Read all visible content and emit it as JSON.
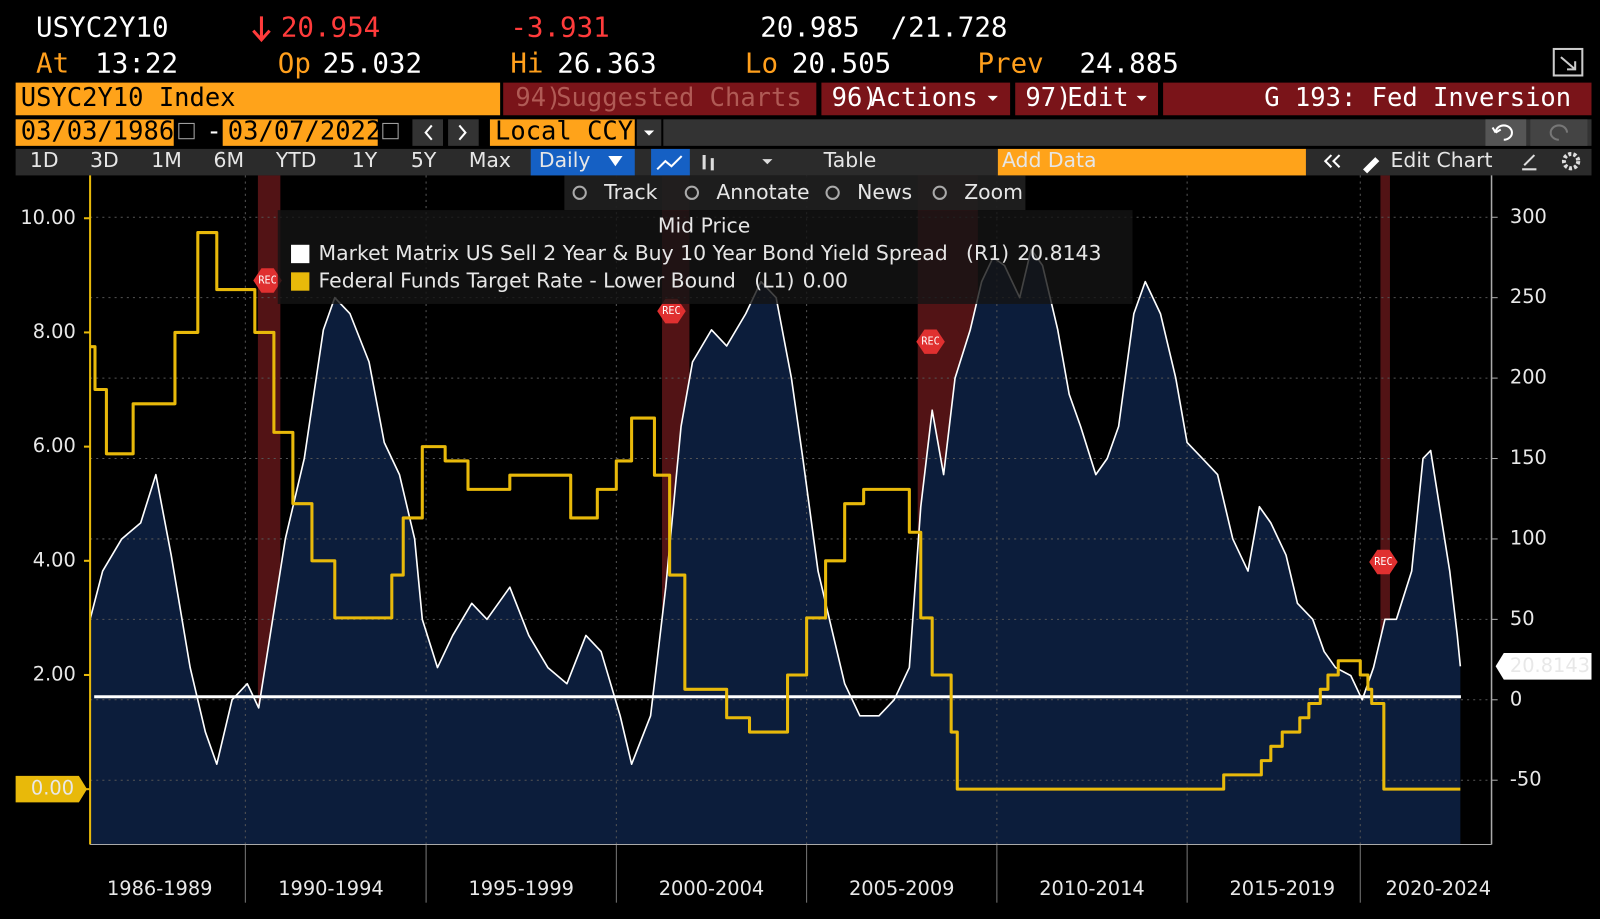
{
  "header": {
    "ticker": "USYC2Y10",
    "last": "20.954",
    "change": "-3.931",
    "bid": "20.985",
    "slash": "/",
    "ask": "21.728",
    "at_label": "At",
    "time": "13:22",
    "open_label": "Op",
    "open": "25.032",
    "high_label": "Hi",
    "high": "26.363",
    "low_label": "Lo",
    "low": "20.505",
    "prev_label": "Prev",
    "prev": "24.885"
  },
  "menu": {
    "security": "USYC2Y10 Index",
    "suggested_num": "94)",
    "suggested": "Suggested Charts",
    "actions_num": "96)",
    "actions": "Actions",
    "edit_num": "97)",
    "edit": "Edit",
    "page_title": "G 193: Fed Inversion"
  },
  "range": {
    "start": "03/03/1986",
    "dash": "-",
    "end": "03/07/2022",
    "currency": "Local CCY"
  },
  "toolbar": {
    "periods": [
      "1D",
      "3D",
      "1M",
      "6M",
      "YTD",
      "1Y",
      "5Y",
      "Max"
    ],
    "frequency": "Daily",
    "table": "Table",
    "add_data": "Add Data",
    "edit_chart": "Edit Chart"
  },
  "chart_tools": [
    "Track",
    "Annotate",
    "News",
    "Zoom"
  ],
  "chart_data": {
    "type": "line",
    "title": "Mid Price",
    "xlim": [
      1986.17,
      2023
    ],
    "xticks": [
      {
        "value": 1988,
        "label": "1986-1989"
      },
      {
        "value": 1992.5,
        "label": "1990-1994"
      },
      {
        "value": 1997.5,
        "label": "1995-1999"
      },
      {
        "value": 2002.5,
        "label": "2000-2004"
      },
      {
        "value": 2007.5,
        "label": "2005-2009"
      },
      {
        "value": 2012.5,
        "label": "2010-2014"
      },
      {
        "value": 2017.5,
        "label": "2015-2019"
      },
      {
        "value": 2021.6,
        "label": "2020-2024"
      }
    ],
    "ylim": [
      -0.97,
      10.75
    ],
    "yticks": [
      {
        "value": 0,
        "label": "0.00"
      },
      {
        "value": 2,
        "label": "2.00"
      },
      {
        "value": 4,
        "label": "4.00"
      },
      {
        "value": 6,
        "label": "6.00"
      },
      {
        "value": 8,
        "label": "8.00"
      },
      {
        "value": 10,
        "label": "10.00"
      }
    ],
    "y2lim": [
      -90,
      326
    ],
    "y2ticks": [
      -50,
      0,
      50,
      100,
      150,
      200,
      250,
      300
    ],
    "grid": true,
    "recession_label": "REC",
    "recessions": [
      [
        1990.58,
        1991.17
      ],
      [
        2001.2,
        2001.92
      ],
      [
        2007.92,
        2009.5
      ],
      [
        2020.08,
        2020.33
      ]
    ],
    "series": [
      {
        "name": "Market Matrix US Sell 2 Year & Buy 10 Year Bond Yield Spread",
        "axis": "y2",
        "axis_tag": "(R1)",
        "legend_value": "20.8143",
        "color": "#ffffff",
        "fill": "#0c1d3b",
        "x": [
          1986.17,
          1986.5,
          1987.0,
          1987.5,
          1987.9,
          1988.3,
          1988.8,
          1989.2,
          1989.5,
          1989.9,
          1990.3,
          1990.6,
          1990.9,
          1991.3,
          1991.8,
          1992.3,
          1992.6,
          1993.0,
          1993.5,
          1993.9,
          1994.3,
          1994.7,
          1994.9,
          1995.3,
          1995.7,
          1996.2,
          1996.6,
          1997.2,
          1997.7,
          1998.2,
          1998.7,
          1999.2,
          1999.6,
          2000.1,
          2000.4,
          2000.9,
          2001.3,
          2001.7,
          2002.0,
          2002.5,
          2002.9,
          2003.4,
          2003.8,
          2004.2,
          2004.6,
          2004.9,
          2005.3,
          2005.7,
          2006.0,
          2006.4,
          2006.9,
          2007.3,
          2007.7,
          2008.0,
          2008.3,
          2008.6,
          2008.9,
          2009.3,
          2009.6,
          2009.9,
          2010.2,
          2010.6,
          2010.9,
          2011.2,
          2011.6,
          2011.9,
          2012.2,
          2012.6,
          2012.9,
          2013.2,
          2013.6,
          2013.9,
          2014.3,
          2014.7,
          2015.0,
          2015.4,
          2015.8,
          2016.2,
          2016.6,
          2016.9,
          2017.2,
          2017.6,
          2017.9,
          2018.3,
          2018.6,
          2018.9,
          2019.3,
          2019.6,
          2019.9,
          2020.2,
          2020.5,
          2020.9,
          2021.2,
          2021.4,
          2021.7,
          2021.9,
          2022.1,
          2022.18
        ],
        "values": [
          50,
          80,
          100,
          110,
          140,
          90,
          20,
          -20,
          -40,
          0,
          10,
          -5,
          40,
          100,
          150,
          230,
          250,
          240,
          210,
          160,
          140,
          100,
          50,
          20,
          40,
          60,
          50,
          70,
          40,
          20,
          10,
          40,
          30,
          -10,
          -40,
          -10,
          70,
          170,
          210,
          230,
          220,
          240,
          260,
          250,
          200,
          150,
          80,
          40,
          10,
          -10,
          -10,
          0,
          20,
          120,
          180,
          140,
          200,
          230,
          260,
          275,
          270,
          250,
          280,
          270,
          230,
          190,
          170,
          140,
          150,
          170,
          240,
          260,
          240,
          200,
          160,
          150,
          140,
          100,
          80,
          120,
          110,
          90,
          60,
          50,
          30,
          20,
          15,
          0,
          20,
          50,
          50,
          80,
          150,
          155,
          110,
          80,
          40,
          20.8143
        ]
      },
      {
        "name": "Federal Funds Target Rate - Lower Bound",
        "axis": "y",
        "axis_tag": "(L1)",
        "legend_value": "0.00",
        "color": "#e8b90a",
        "x": [
          1986.17,
          1986.3,
          1986.3,
          1986.6,
          1986.6,
          1987.3,
          1987.3,
          1988.4,
          1988.4,
          1989.0,
          1989.0,
          1989.5,
          1989.5,
          1990.5,
          1990.5,
          1991.0,
          1991.0,
          1991.5,
          1991.5,
          1992.0,
          1992.0,
          1992.6,
          1992.6,
          1994.1,
          1994.1,
          1994.4,
          1994.4,
          1994.9,
          1994.9,
          1995.5,
          1995.5,
          1996.1,
          1996.1,
          1997.2,
          1997.2,
          1998.8,
          1998.8,
          1999.5,
          1999.5,
          2000.0,
          2000.0,
          2000.4,
          2000.4,
          2001.0,
          2001.0,
          2001.4,
          2001.4,
          2001.8,
          2001.8,
          2002.9,
          2002.9,
          2003.5,
          2003.5,
          2004.5,
          2004.5,
          2005.0,
          2005.0,
          2005.5,
          2005.5,
          2006.0,
          2006.0,
          2006.5,
          2006.5,
          2007.7,
          2007.7,
          2008.0,
          2008.0,
          2008.3,
          2008.3,
          2008.8,
          2008.8,
          2008.96,
          2008.96,
          2015.96,
          2015.96,
          2016.95,
          2016.95,
          2017.2,
          2017.2,
          2017.5,
          2017.5,
          2017.96,
          2017.96,
          2018.2,
          2018.2,
          2018.5,
          2018.5,
          2018.7,
          2018.7,
          2018.97,
          2018.97,
          2019.55,
          2019.55,
          2019.75,
          2019.75,
          2019.85,
          2019.85,
          2020.17,
          2020.17,
          2022.18
        ],
        "values": [
          7.75,
          7.75,
          7.0,
          7.0,
          5.875,
          5.875,
          6.75,
          6.75,
          8.0,
          8.0,
          9.75,
          9.75,
          8.75,
          8.75,
          8.0,
          8.0,
          6.25,
          6.25,
          5.0,
          5.0,
          4.0,
          4.0,
          3.0,
          3.0,
          3.75,
          3.75,
          4.75,
          4.75,
          6.0,
          6.0,
          5.75,
          5.75,
          5.25,
          5.25,
          5.5,
          5.5,
          4.75,
          4.75,
          5.25,
          5.25,
          5.75,
          5.75,
          6.5,
          6.5,
          5.5,
          5.5,
          3.75,
          3.75,
          1.75,
          1.75,
          1.25,
          1.25,
          1.0,
          1.0,
          2.0,
          2.0,
          3.0,
          3.0,
          4.0,
          4.0,
          5.0,
          5.0,
          5.25,
          5.25,
          4.5,
          4.5,
          3.0,
          3.0,
          2.0,
          2.0,
          1.0,
          1.0,
          0,
          0,
          0.25,
          0.25,
          0.5,
          0.5,
          0.75,
          0.75,
          1.0,
          1.0,
          1.25,
          1.25,
          1.5,
          1.5,
          1.75,
          1.75,
          2.0,
          2.0,
          2.25,
          2.25,
          2.0,
          2.0,
          1.75,
          1.75,
          1.5,
          1.5,
          0,
          0
        ]
      }
    ]
  }
}
